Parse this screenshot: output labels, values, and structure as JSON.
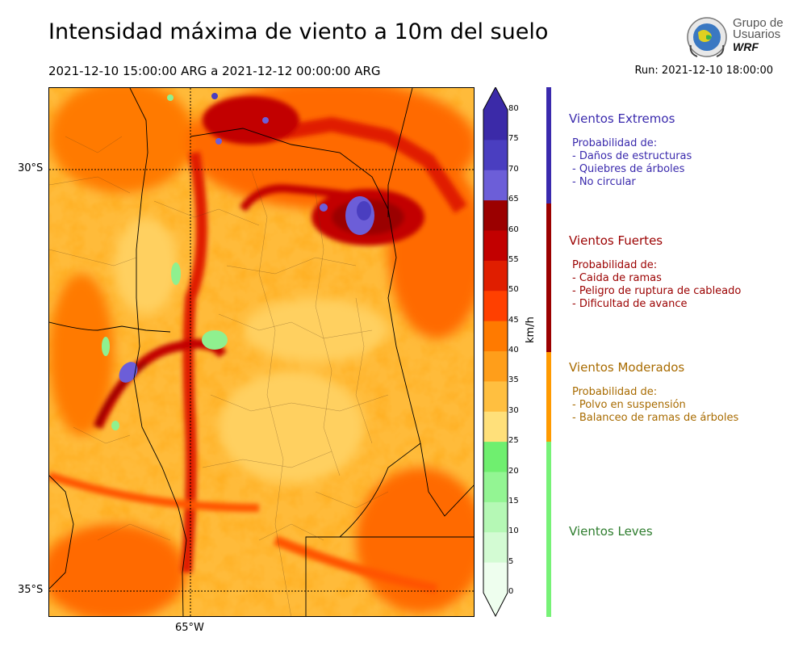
{
  "title": "Intensidad máxima de viento a 10m del suelo",
  "period": "2021-12-10 15:00:00 ARG  a  2021-12-12 00:00:00 ARG",
  "run": "Run: 2021-12-10 18:00:00",
  "logo": {
    "line1": "Grupo de",
    "line2": "Usuarios",
    "line3": "WRF"
  },
  "map": {
    "lat_labels": [
      "30°S",
      "35°S"
    ],
    "lon_labels": [
      "65°W"
    ]
  },
  "colorbar": {
    "unit": "km/h",
    "ticks": [
      "80",
      "75",
      "70",
      "65",
      "60",
      "55",
      "50",
      "45",
      "40",
      "35",
      "30",
      "25",
      "20",
      "15",
      "10",
      "5",
      "0"
    ],
    "colors": [
      "#3b2aa8",
      "#4a3ec0",
      "#6c5ed8",
      "#9b0000",
      "#c20000",
      "#e01e00",
      "#ff4000",
      "#ff7a00",
      "#ff9e1a",
      "#ffbf40",
      "#ffe07a",
      "#6fef6f",
      "#93f593",
      "#b5f8b5",
      "#d3fbd3",
      "#eefeee"
    ]
  },
  "categories": [
    {
      "name": "Vientos Extremos",
      "color": "#3a2aad",
      "bar": "#3a2aad",
      "prob": "Probabilidad de:",
      "items": [
        "- Daños de estructuras",
        "- Quiebres de árboles",
        "- No circular"
      ]
    },
    {
      "name": "Vientos Fuertes",
      "color": "#9b0000",
      "bar": "#9b0000",
      "prob": "Probabilidad de:",
      "items": [
        "- Caida de ramas",
        "- Peligro de ruptura de cableado",
        "- Dificultad de avance"
      ]
    },
    {
      "name": "Vientos Moderados",
      "color": "#a86b00",
      "bar": "#ff9a00",
      "prob": "Probabilidad de:",
      "items": [
        "- Polvo en suspensión",
        "- Balanceo de ramas de árboles"
      ]
    },
    {
      "name": "Vientos Leves",
      "color": "#2e7d2e",
      "bar": "#77f277",
      "prob": "",
      "items": []
    }
  ]
}
